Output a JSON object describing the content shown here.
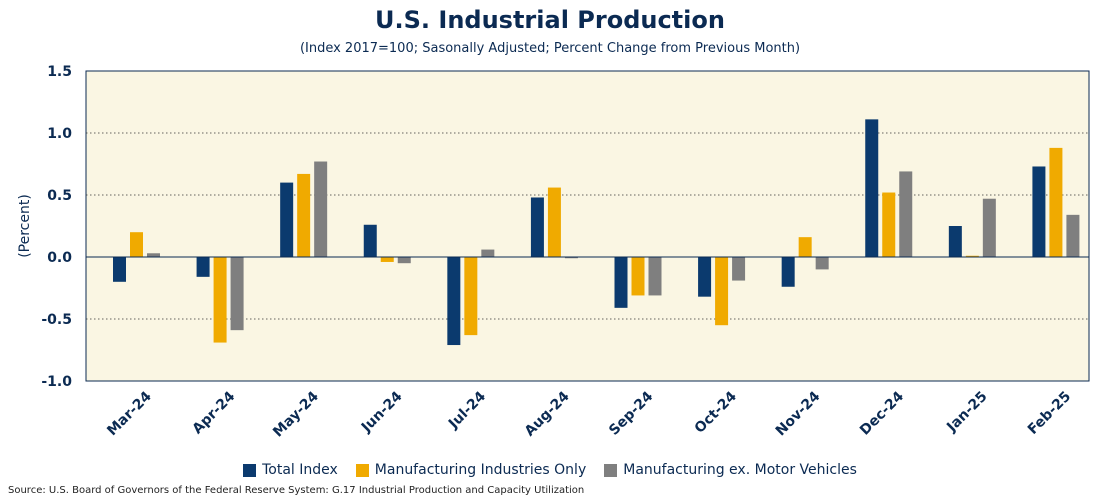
{
  "chart_data": {
    "type": "bar",
    "title": "U.S. Industrial Production",
    "subtitle": "(Index 2017=100; Sasonally Adjusted; Percent Change from Previous Month)",
    "ylabel": "(Percent)",
    "xlabel": "",
    "ylim": [
      -1.0,
      1.5
    ],
    "yticks": [
      -1.0,
      -0.5,
      0.0,
      0.5,
      1.0,
      1.5
    ],
    "ytick_labels": [
      "-1.0",
      "-0.5",
      "0.0",
      "0.5",
      "1.0",
      "1.5"
    ],
    "grid": true,
    "legend_position": "bottom",
    "categories": [
      "Mar-24",
      "Apr-24",
      "May-24",
      "Jun-24",
      "Jul-24",
      "Aug-24",
      "Sep-24",
      "Oct-24",
      "Nov-24",
      "Dec-24",
      "Jan-25",
      "Feb-25"
    ],
    "series": [
      {
        "name": "Total Index",
        "color": "#0b3a6e",
        "values": [
          -0.2,
          -0.16,
          0.6,
          0.26,
          -0.71,
          0.48,
          -0.41,
          -0.32,
          -0.24,
          1.11,
          0.25,
          0.73
        ]
      },
      {
        "name": "Manufacturing Industries Only",
        "color": "#f0aa00",
        "values": [
          0.2,
          -0.69,
          0.67,
          -0.04,
          -0.63,
          0.56,
          -0.31,
          -0.55,
          0.16,
          0.52,
          0.01,
          0.88
        ]
      },
      {
        "name": "Manufacturing ex. Motor Vehicles",
        "color": "#7f7f7f",
        "values": [
          0.03,
          -0.59,
          0.77,
          -0.05,
          0.06,
          -0.01,
          -0.31,
          -0.19,
          -0.1,
          0.69,
          0.47,
          0.34
        ]
      }
    ]
  },
  "source": "Source: U.S. Board of Governors of the Federal Reserve System: G.17 Industrial Production and Capacity Utilization"
}
